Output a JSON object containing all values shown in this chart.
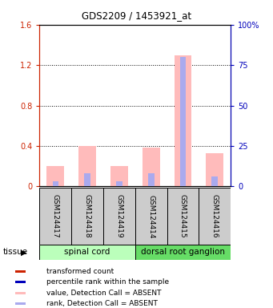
{
  "title": "GDS2209 / 1453921_at",
  "samples": [
    "GSM124417",
    "GSM124418",
    "GSM124419",
    "GSM124414",
    "GSM124415",
    "GSM124416"
  ],
  "tissue_groups": [
    {
      "label": "spinal cord",
      "indices": [
        0,
        1,
        2
      ],
      "color": "#bbffbb"
    },
    {
      "label": "dorsal root ganglion",
      "indices": [
        3,
        4,
        5
      ],
      "color": "#66dd66"
    }
  ],
  "value_bars": [
    0.2,
    0.4,
    0.2,
    0.38,
    1.3,
    0.33
  ],
  "rank_bars_pct": [
    3.0,
    8.0,
    3.0,
    8.0,
    80.0,
    6.0
  ],
  "ylim_left": [
    0,
    1.6
  ],
  "ylim_right": [
    0,
    100
  ],
  "yticks_left": [
    0,
    0.4,
    0.8,
    1.2,
    1.6
  ],
  "yticks_right": [
    0,
    25,
    50,
    75,
    100
  ],
  "ytick_labels_left": [
    "0",
    "0.4",
    "0.8",
    "1.2",
    "1.6"
  ],
  "ytick_labels_right": [
    "0",
    "25",
    "50",
    "75",
    "100%"
  ],
  "left_axis_color": "#cc2200",
  "right_axis_color": "#0000bb",
  "bar_width": 0.55,
  "value_bar_color": "#ffbbbb",
  "rank_bar_color": "#aaaaee",
  "sample_box_color": "#cccccc",
  "tissue_label": "tissue",
  "legend_items": [
    {
      "label": "transformed count",
      "color": "#cc2200"
    },
    {
      "label": "percentile rank within the sample",
      "color": "#0000bb"
    },
    {
      "label": "value, Detection Call = ABSENT",
      "color": "#ffbbbb"
    },
    {
      "label": "rank, Detection Call = ABSENT",
      "color": "#aaaaee"
    }
  ],
  "background_color": "#ffffff"
}
